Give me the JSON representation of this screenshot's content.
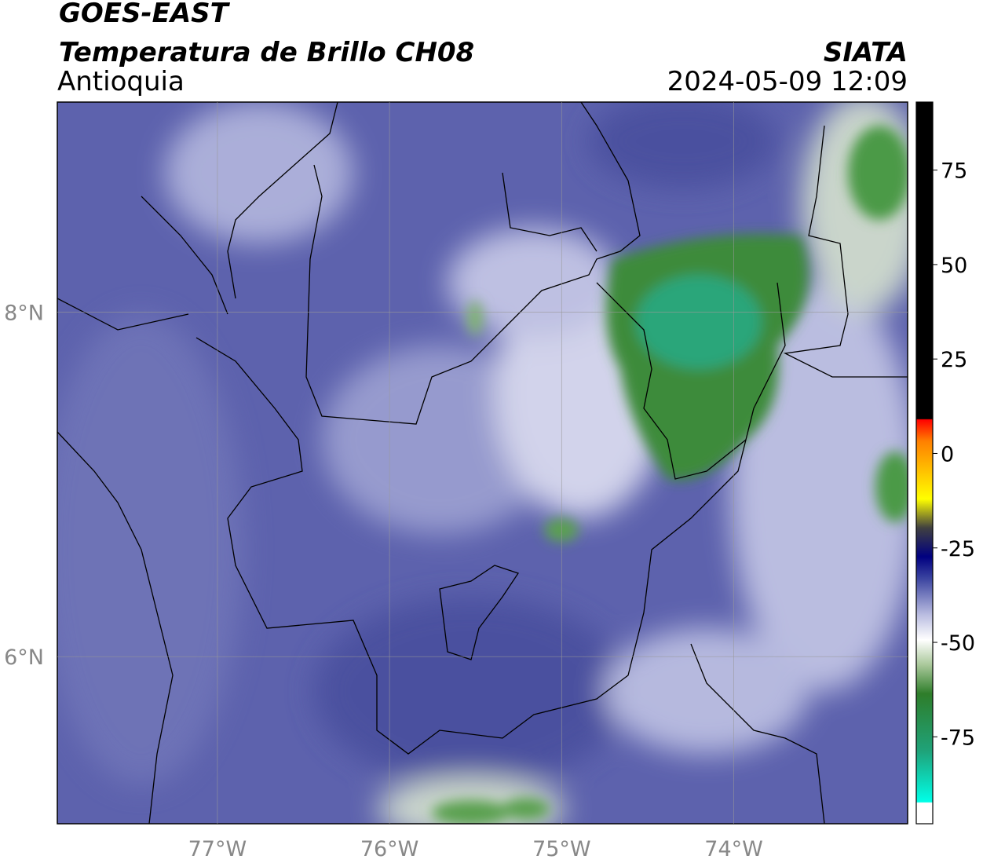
{
  "header": {
    "satellite": "GOES-EAST",
    "product": "Temperatura de Brillo CH08",
    "region": "Antioquia",
    "agency": "SIATA",
    "datetime": "2024-05-09 12:09"
  },
  "map": {
    "lonlim": [
      -77.93,
      -72.99
    ],
    "latlim": [
      5.03,
      9.22
    ],
    "xticks": [
      {
        "value": -77,
        "label": "77°W"
      },
      {
        "value": -76,
        "label": "76°W"
      },
      {
        "value": -75,
        "label": "75°W"
      },
      {
        "value": -74,
        "label": "74°W"
      }
    ],
    "yticks": [
      {
        "value": 8,
        "label": "8°N"
      },
      {
        "value": 6,
        "label": "6°N"
      }
    ]
  },
  "colorbar": {
    "range": [
      -98,
      93
    ],
    "ticks": [
      75,
      50,
      25,
      0,
      -25,
      -50,
      -75
    ]
  }
}
